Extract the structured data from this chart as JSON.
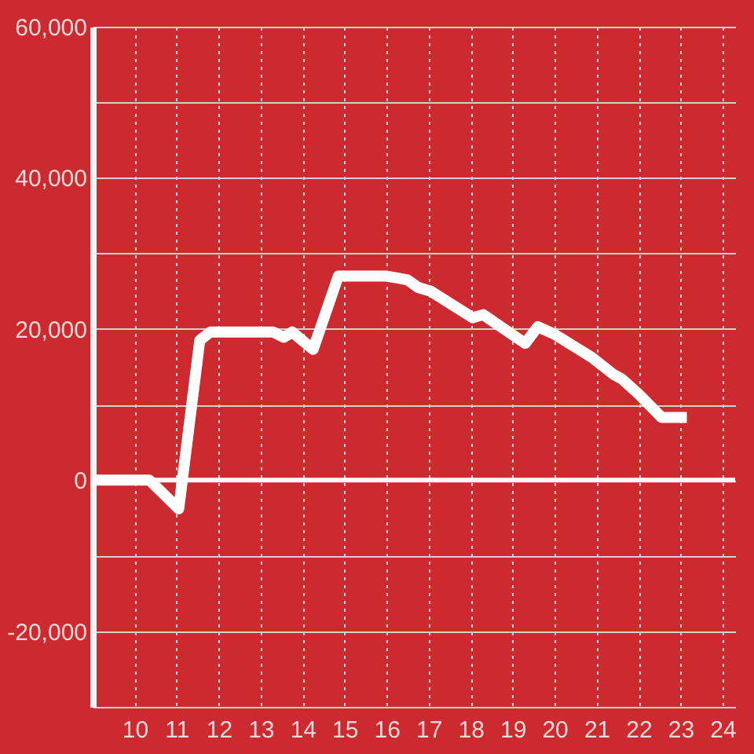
{
  "chart_data": {
    "type": "line",
    "x": [
      9.0,
      10.35,
      11.05,
      11.55,
      11.8,
      13.3,
      13.55,
      13.75,
      14.25,
      14.85,
      16.0,
      16.5,
      16.75,
      17.05,
      18.05,
      18.3,
      19.3,
      19.6,
      20.0,
      20.9,
      21.4,
      21.6,
      22.0,
      22.55,
      23.15
    ],
    "series": [
      {
        "color": "#ffffff",
        "values": [
          0,
          0,
          -3800,
          18500,
          19600,
          19600,
          18900,
          19600,
          17300,
          27000,
          27000,
          26500,
          25500,
          25000,
          21500,
          21900,
          18100,
          20300,
          19300,
          16200,
          14000,
          13400,
          11400,
          8300,
          8300
        ]
      }
    ],
    "xlim": [
      9,
      24.3
    ],
    "xticks": [
      10,
      11,
      12,
      13,
      14,
      15,
      16,
      17,
      18,
      19,
      20,
      21,
      22,
      23,
      24
    ],
    "ylim": [
      -30000,
      60000
    ],
    "yticks": [
      {
        "value": 60000,
        "label": "60,000"
      },
      {
        "value": 50000,
        "label": null
      },
      {
        "value": 40000,
        "label": "40,000"
      },
      {
        "value": 30000,
        "label": null
      },
      {
        "value": 20000,
        "label": "20,000"
      },
      {
        "value": 10000,
        "label": null
      },
      0,
      {
        "value": -10000,
        "label": null
      },
      {
        "value": -20000,
        "label": "-20,000"
      }
    ],
    "ref_lines": [
      {
        "axis": "y",
        "value": 0,
        "color": "#ffffff"
      }
    ],
    "grid": true,
    "marker": "none",
    "line_style": "solid"
  }
}
